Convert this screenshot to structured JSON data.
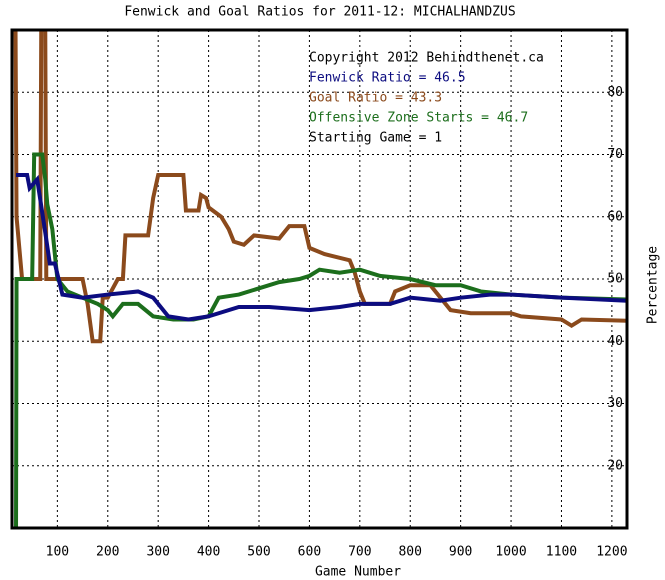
{
  "chart_data": {
    "type": "line",
    "title": "Fenwick and Goal Ratios for 2011-12: MICHALHANDZUS",
    "x_label": "Game Number",
    "y_label": "Percentage",
    "xlim": [
      10,
      1230
    ],
    "ylim": [
      10,
      90
    ],
    "xticks": [
      100,
      200,
      300,
      400,
      500,
      600,
      700,
      800,
      900,
      1000,
      1100,
      1200
    ],
    "yticks": [
      20,
      30,
      40,
      50,
      60,
      70,
      80
    ],
    "grid": true,
    "annotations": [
      {
        "text": "Copyright 2012 Behindthenet.ca",
        "color": "#000000"
      },
      {
        "text": "Fenwick Ratio = 46.5",
        "color": "#0c0c80"
      },
      {
        "text": "Goal Ratio = 43.3",
        "color": "#8b4a1c"
      },
      {
        "text": "Offensive Zone Starts = 46.7",
        "color": "#1c6e1c"
      },
      {
        "text": "Starting Game = 1",
        "color": "#000000"
      }
    ],
    "series": [
      {
        "color": "#8b4a1c",
        "x": [
          17,
          19,
          30,
          66,
          68,
          76,
          78,
          150,
          160,
          170,
          185,
          190,
          200,
          220,
          230,
          235,
          280,
          290,
          300,
          350,
          355,
          380,
          385,
          395,
          400,
          425,
          440,
          450,
          470,
          490,
          540,
          560,
          590,
          600,
          630,
          680,
          690,
          700,
          710,
          760,
          770,
          800,
          840,
          850,
          880,
          920,
          1000,
          1020,
          1100,
          1120,
          1140,
          1230
        ],
        "values": [
          90,
          60,
          50,
          50,
          90,
          90,
          50,
          50,
          46,
          40,
          40,
          47,
          47,
          50,
          50,
          57,
          57,
          63,
          66.7,
          66.7,
          61,
          61,
          63.5,
          63,
          61.5,
          60,
          58,
          56,
          55.5,
          57,
          56.5,
          58.5,
          58.5,
          55,
          54,
          53,
          51,
          48,
          46,
          46,
          48,
          49,
          49,
          48,
          45,
          44.5,
          44.5,
          44,
          43.5,
          42.5,
          43.5,
          43.3
        ]
      },
      {
        "color": "#1c6e1c",
        "x": [
          18,
          19,
          50,
          54,
          70,
          76,
          80,
          90,
          100,
          120,
          150,
          180,
          200,
          210,
          230,
          260,
          290,
          330,
          370,
          400,
          420,
          460,
          500,
          540,
          580,
          600,
          620,
          660,
          700,
          740,
          800,
          850,
          900,
          940,
          1000,
          1100,
          1230
        ],
        "values": [
          10,
          50,
          50,
          70,
          70,
          66,
          62,
          58,
          50,
          48,
          47,
          46,
          45,
          44,
          46,
          46,
          44,
          43.5,
          43.5,
          44,
          47,
          47.5,
          48.5,
          49.5,
          50,
          50.5,
          51.5,
          51,
          51.5,
          50.5,
          50,
          49,
          49,
          48,
          47.5,
          47,
          46.7
        ]
      },
      {
        "color": "#0c0c80",
        "x": [
          18,
          40,
          45,
          60,
          75,
          85,
          95,
          110,
          150,
          200,
          260,
          290,
          320,
          360,
          400,
          460,
          520,
          600,
          660,
          700,
          760,
          800,
          860,
          900,
          960,
          1000,
          1100,
          1230
        ],
        "values": [
          66.7,
          66.7,
          64.6,
          66,
          58,
          52.5,
          52.5,
          47.5,
          47,
          47.5,
          48,
          47,
          44,
          43.5,
          44,
          45.5,
          45.5,
          45,
          45.5,
          46,
          46,
          47,
          46.5,
          47,
          47.5,
          47.5,
          47,
          46.5
        ]
      }
    ]
  }
}
